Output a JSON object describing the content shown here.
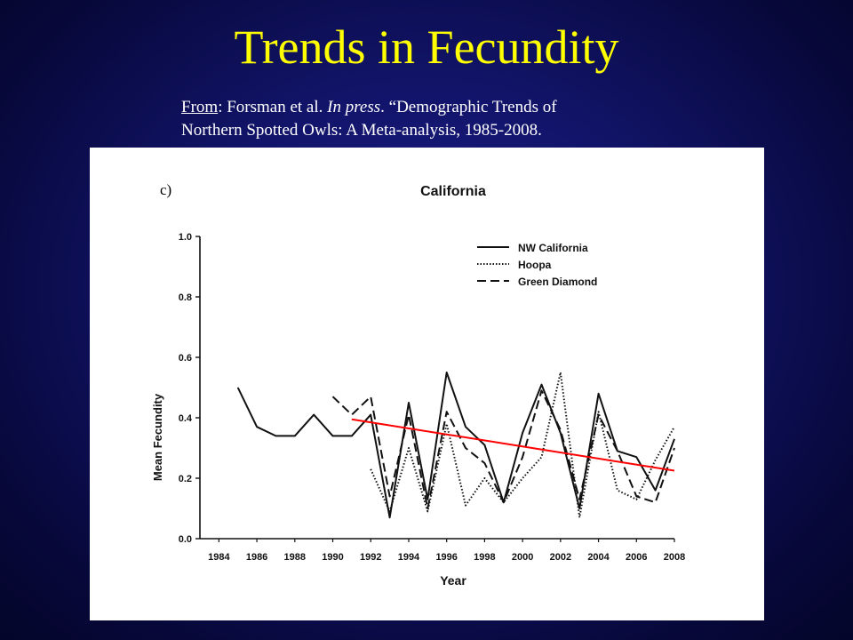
{
  "slide": {
    "title": "Trends in Fecundity",
    "citation": {
      "from_label": "From",
      "after_from": ": Forsman et al. ",
      "in_press": "In press",
      "rest_line1": ". “Demographic Trends of",
      "line2": "Northern Spotted Owls: A Meta-analysis, 1985-2008."
    }
  },
  "colors": {
    "background": "#12146a",
    "title": "#ffff00",
    "trend_line": "#ff0000"
  },
  "chart_data": {
    "type": "line",
    "panel_label": "c)",
    "title": "California",
    "xlabel": "Year",
    "ylabel": "Mean Fecundity",
    "xlim": [
      1983,
      2008
    ],
    "ylim": [
      0,
      1.0
    ],
    "x_ticks": [
      1984,
      1986,
      1988,
      1990,
      1992,
      1994,
      1996,
      1998,
      2000,
      2002,
      2004,
      2006,
      2008
    ],
    "y_ticks": [
      "0.0",
      "0.2",
      "0.4",
      "0.6",
      "0.8",
      "1.0"
    ],
    "legend_position": "top-right",
    "series": [
      {
        "name": "NW California",
        "style": "solid",
        "x": [
          1985,
          1986,
          1987,
          1988,
          1989,
          1990,
          1991,
          1992,
          1993,
          1994,
          1995,
          1996,
          1997,
          1998,
          1999,
          2000,
          2001,
          2002,
          2003,
          2004,
          2005,
          2006,
          2007,
          2008
        ],
        "y": [
          0.5,
          0.37,
          0.34,
          0.34,
          0.41,
          0.34,
          0.34,
          0.41,
          0.07,
          0.45,
          0.13,
          0.55,
          0.37,
          0.31,
          0.12,
          0.35,
          0.51,
          0.35,
          0.1,
          0.48,
          0.29,
          0.27,
          0.16,
          0.33
        ]
      },
      {
        "name": "Hoopa",
        "style": "dotted",
        "x": [
          1992,
          1993,
          1994,
          1995,
          1996,
          1997,
          1998,
          1999,
          2000,
          2001,
          2002,
          2003,
          2004,
          2005,
          2006,
          2007,
          2008
        ],
        "y": [
          0.23,
          0.09,
          0.3,
          0.09,
          0.38,
          0.11,
          0.2,
          0.12,
          0.2,
          0.27,
          0.55,
          0.07,
          0.42,
          0.16,
          0.13,
          0.26,
          0.37
        ]
      },
      {
        "name": "Green Diamond",
        "style": "dashed",
        "x": [
          1990,
          1991,
          1992,
          1993,
          1994,
          1995,
          1996,
          1997,
          1998,
          1999,
          2000,
          2001,
          2002,
          2003,
          2004,
          2005,
          2006,
          2007,
          2008
        ],
        "y": [
          0.47,
          0.41,
          0.47,
          0.14,
          0.41,
          0.1,
          0.42,
          0.3,
          0.25,
          0.12,
          0.27,
          0.49,
          0.36,
          0.13,
          0.41,
          0.29,
          0.14,
          0.12,
          0.3
        ]
      }
    ],
    "trend_line": {
      "color": "#ff0000",
      "x": [
        1991,
        2008
      ],
      "y": [
        0.395,
        0.225
      ]
    }
  }
}
